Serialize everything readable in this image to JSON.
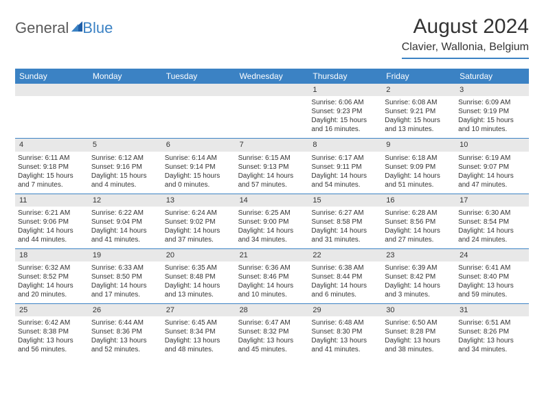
{
  "logo": {
    "part1": "General",
    "part2": "Blue"
  },
  "title": "August 2024",
  "location": "Clavier, Wallonia, Belgium",
  "colors": {
    "accent": "#3b82c4",
    "header_text": "#ffffff",
    "daynum_bg": "#e8e8e8",
    "text": "#333333",
    "logo_gray": "#595959"
  },
  "day_names": [
    "Sunday",
    "Monday",
    "Tuesday",
    "Wednesday",
    "Thursday",
    "Friday",
    "Saturday"
  ],
  "weeks": [
    [
      {
        "empty": true
      },
      {
        "empty": true
      },
      {
        "empty": true
      },
      {
        "empty": true
      },
      {
        "day": "1",
        "sunrise": "Sunrise: 6:06 AM",
        "sunset": "Sunset: 9:23 PM",
        "daylight": "Daylight: 15 hours and 16 minutes."
      },
      {
        "day": "2",
        "sunrise": "Sunrise: 6:08 AM",
        "sunset": "Sunset: 9:21 PM",
        "daylight": "Daylight: 15 hours and 13 minutes."
      },
      {
        "day": "3",
        "sunrise": "Sunrise: 6:09 AM",
        "sunset": "Sunset: 9:19 PM",
        "daylight": "Daylight: 15 hours and 10 minutes."
      }
    ],
    [
      {
        "day": "4",
        "sunrise": "Sunrise: 6:11 AM",
        "sunset": "Sunset: 9:18 PM",
        "daylight": "Daylight: 15 hours and 7 minutes."
      },
      {
        "day": "5",
        "sunrise": "Sunrise: 6:12 AM",
        "sunset": "Sunset: 9:16 PM",
        "daylight": "Daylight: 15 hours and 4 minutes."
      },
      {
        "day": "6",
        "sunrise": "Sunrise: 6:14 AM",
        "sunset": "Sunset: 9:14 PM",
        "daylight": "Daylight: 15 hours and 0 minutes."
      },
      {
        "day": "7",
        "sunrise": "Sunrise: 6:15 AM",
        "sunset": "Sunset: 9:13 PM",
        "daylight": "Daylight: 14 hours and 57 minutes."
      },
      {
        "day": "8",
        "sunrise": "Sunrise: 6:17 AM",
        "sunset": "Sunset: 9:11 PM",
        "daylight": "Daylight: 14 hours and 54 minutes."
      },
      {
        "day": "9",
        "sunrise": "Sunrise: 6:18 AM",
        "sunset": "Sunset: 9:09 PM",
        "daylight": "Daylight: 14 hours and 51 minutes."
      },
      {
        "day": "10",
        "sunrise": "Sunrise: 6:19 AM",
        "sunset": "Sunset: 9:07 PM",
        "daylight": "Daylight: 14 hours and 47 minutes."
      }
    ],
    [
      {
        "day": "11",
        "sunrise": "Sunrise: 6:21 AM",
        "sunset": "Sunset: 9:06 PM",
        "daylight": "Daylight: 14 hours and 44 minutes."
      },
      {
        "day": "12",
        "sunrise": "Sunrise: 6:22 AM",
        "sunset": "Sunset: 9:04 PM",
        "daylight": "Daylight: 14 hours and 41 minutes."
      },
      {
        "day": "13",
        "sunrise": "Sunrise: 6:24 AM",
        "sunset": "Sunset: 9:02 PM",
        "daylight": "Daylight: 14 hours and 37 minutes."
      },
      {
        "day": "14",
        "sunrise": "Sunrise: 6:25 AM",
        "sunset": "Sunset: 9:00 PM",
        "daylight": "Daylight: 14 hours and 34 minutes."
      },
      {
        "day": "15",
        "sunrise": "Sunrise: 6:27 AM",
        "sunset": "Sunset: 8:58 PM",
        "daylight": "Daylight: 14 hours and 31 minutes."
      },
      {
        "day": "16",
        "sunrise": "Sunrise: 6:28 AM",
        "sunset": "Sunset: 8:56 PM",
        "daylight": "Daylight: 14 hours and 27 minutes."
      },
      {
        "day": "17",
        "sunrise": "Sunrise: 6:30 AM",
        "sunset": "Sunset: 8:54 PM",
        "daylight": "Daylight: 14 hours and 24 minutes."
      }
    ],
    [
      {
        "day": "18",
        "sunrise": "Sunrise: 6:32 AM",
        "sunset": "Sunset: 8:52 PM",
        "daylight": "Daylight: 14 hours and 20 minutes."
      },
      {
        "day": "19",
        "sunrise": "Sunrise: 6:33 AM",
        "sunset": "Sunset: 8:50 PM",
        "daylight": "Daylight: 14 hours and 17 minutes."
      },
      {
        "day": "20",
        "sunrise": "Sunrise: 6:35 AM",
        "sunset": "Sunset: 8:48 PM",
        "daylight": "Daylight: 14 hours and 13 minutes."
      },
      {
        "day": "21",
        "sunrise": "Sunrise: 6:36 AM",
        "sunset": "Sunset: 8:46 PM",
        "daylight": "Daylight: 14 hours and 10 minutes."
      },
      {
        "day": "22",
        "sunrise": "Sunrise: 6:38 AM",
        "sunset": "Sunset: 8:44 PM",
        "daylight": "Daylight: 14 hours and 6 minutes."
      },
      {
        "day": "23",
        "sunrise": "Sunrise: 6:39 AM",
        "sunset": "Sunset: 8:42 PM",
        "daylight": "Daylight: 14 hours and 3 minutes."
      },
      {
        "day": "24",
        "sunrise": "Sunrise: 6:41 AM",
        "sunset": "Sunset: 8:40 PM",
        "daylight": "Daylight: 13 hours and 59 minutes."
      }
    ],
    [
      {
        "day": "25",
        "sunrise": "Sunrise: 6:42 AM",
        "sunset": "Sunset: 8:38 PM",
        "daylight": "Daylight: 13 hours and 56 minutes."
      },
      {
        "day": "26",
        "sunrise": "Sunrise: 6:44 AM",
        "sunset": "Sunset: 8:36 PM",
        "daylight": "Daylight: 13 hours and 52 minutes."
      },
      {
        "day": "27",
        "sunrise": "Sunrise: 6:45 AM",
        "sunset": "Sunset: 8:34 PM",
        "daylight": "Daylight: 13 hours and 48 minutes."
      },
      {
        "day": "28",
        "sunrise": "Sunrise: 6:47 AM",
        "sunset": "Sunset: 8:32 PM",
        "daylight": "Daylight: 13 hours and 45 minutes."
      },
      {
        "day": "29",
        "sunrise": "Sunrise: 6:48 AM",
        "sunset": "Sunset: 8:30 PM",
        "daylight": "Daylight: 13 hours and 41 minutes."
      },
      {
        "day": "30",
        "sunrise": "Sunrise: 6:50 AM",
        "sunset": "Sunset: 8:28 PM",
        "daylight": "Daylight: 13 hours and 38 minutes."
      },
      {
        "day": "31",
        "sunrise": "Sunrise: 6:51 AM",
        "sunset": "Sunset: 8:26 PM",
        "daylight": "Daylight: 13 hours and 34 minutes."
      }
    ]
  ]
}
